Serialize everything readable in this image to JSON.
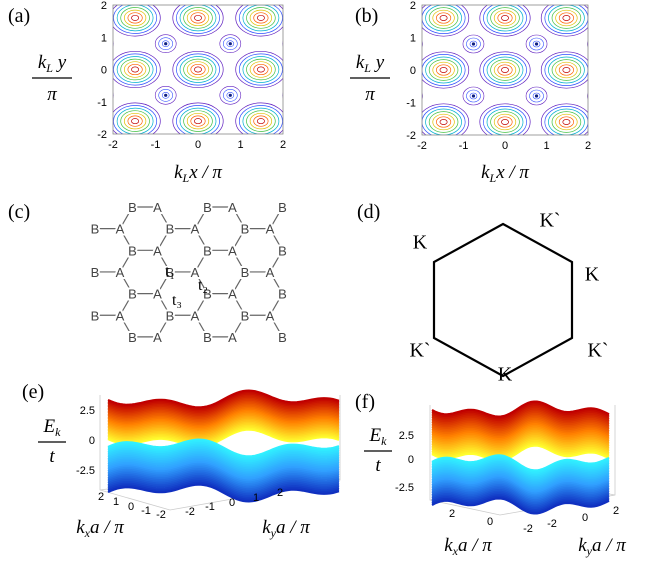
{
  "panels": {
    "a": {
      "label": "(a)",
      "yticks": [
        2,
        1,
        0,
        -1,
        -2
      ],
      "xticks": [
        -2,
        -1,
        0,
        1,
        2
      ],
      "y_label": {
        "k": "k",
        "sub": "L",
        "var": " y",
        "den": "π"
      },
      "x_label": {
        "k": "k",
        "sub": "L",
        "var": "x / π"
      }
    },
    "b": {
      "label": "(b)",
      "yticks": [
        2,
        1,
        0,
        -1,
        -2
      ],
      "xticks": [
        -2,
        -1,
        0,
        1,
        2
      ],
      "y_label": {
        "k": "k",
        "sub": "L",
        "var": " y",
        "den": "π"
      },
      "x_label": {
        "k": "k",
        "sub": "L",
        "var": "x / π"
      }
    },
    "c": {
      "label": "(c)",
      "sites": [
        "B",
        "A",
        "B",
        "A",
        "B",
        "B",
        "A",
        "B",
        "A",
        "B",
        "A",
        "B",
        "A",
        "B",
        "A",
        "B",
        "B",
        "A",
        "B",
        "A",
        "B",
        "A",
        "B",
        "A",
        "B",
        "A",
        "B",
        "B",
        "A",
        "B",
        "A",
        "B",
        "A",
        "B",
        "A",
        "B",
        "A",
        "B"
      ],
      "hoppings": [
        "t₁",
        "t₂",
        "t₃"
      ]
    },
    "d": {
      "label": "(d)",
      "points": [
        "K",
        "K`",
        "K",
        "K`",
        "K",
        "K`"
      ]
    },
    "e": {
      "label": "(e)",
      "zticks": [
        2.5,
        0,
        -2.5
      ],
      "kx_ticks": [
        2,
        1,
        0,
        -1,
        -2
      ],
      "ky_ticks": [
        -2,
        -1,
        0,
        1,
        2
      ],
      "z_label": {
        "E": "E",
        "sub": "k",
        "den": "t"
      },
      "kx_label": {
        "k": "k",
        "sub": "x",
        "var": "a / π"
      },
      "ky_label": {
        "k": "k",
        "sub": "y",
        "var": "a / π"
      }
    },
    "f": {
      "label": "(f)",
      "zticks": [
        2.5,
        0,
        -2.5
      ],
      "kx_ticks": [
        2,
        0,
        -2
      ],
      "ky_ticks": [
        -2,
        0,
        2
      ],
      "z_label": {
        "E": "E",
        "sub": "k",
        "den": "t"
      },
      "kx_label": {
        "k": "k",
        "sub": "x",
        "var": "a / π"
      },
      "ky_label": {
        "k": "k",
        "sub": "y",
        "var": "a / π"
      }
    }
  }
}
